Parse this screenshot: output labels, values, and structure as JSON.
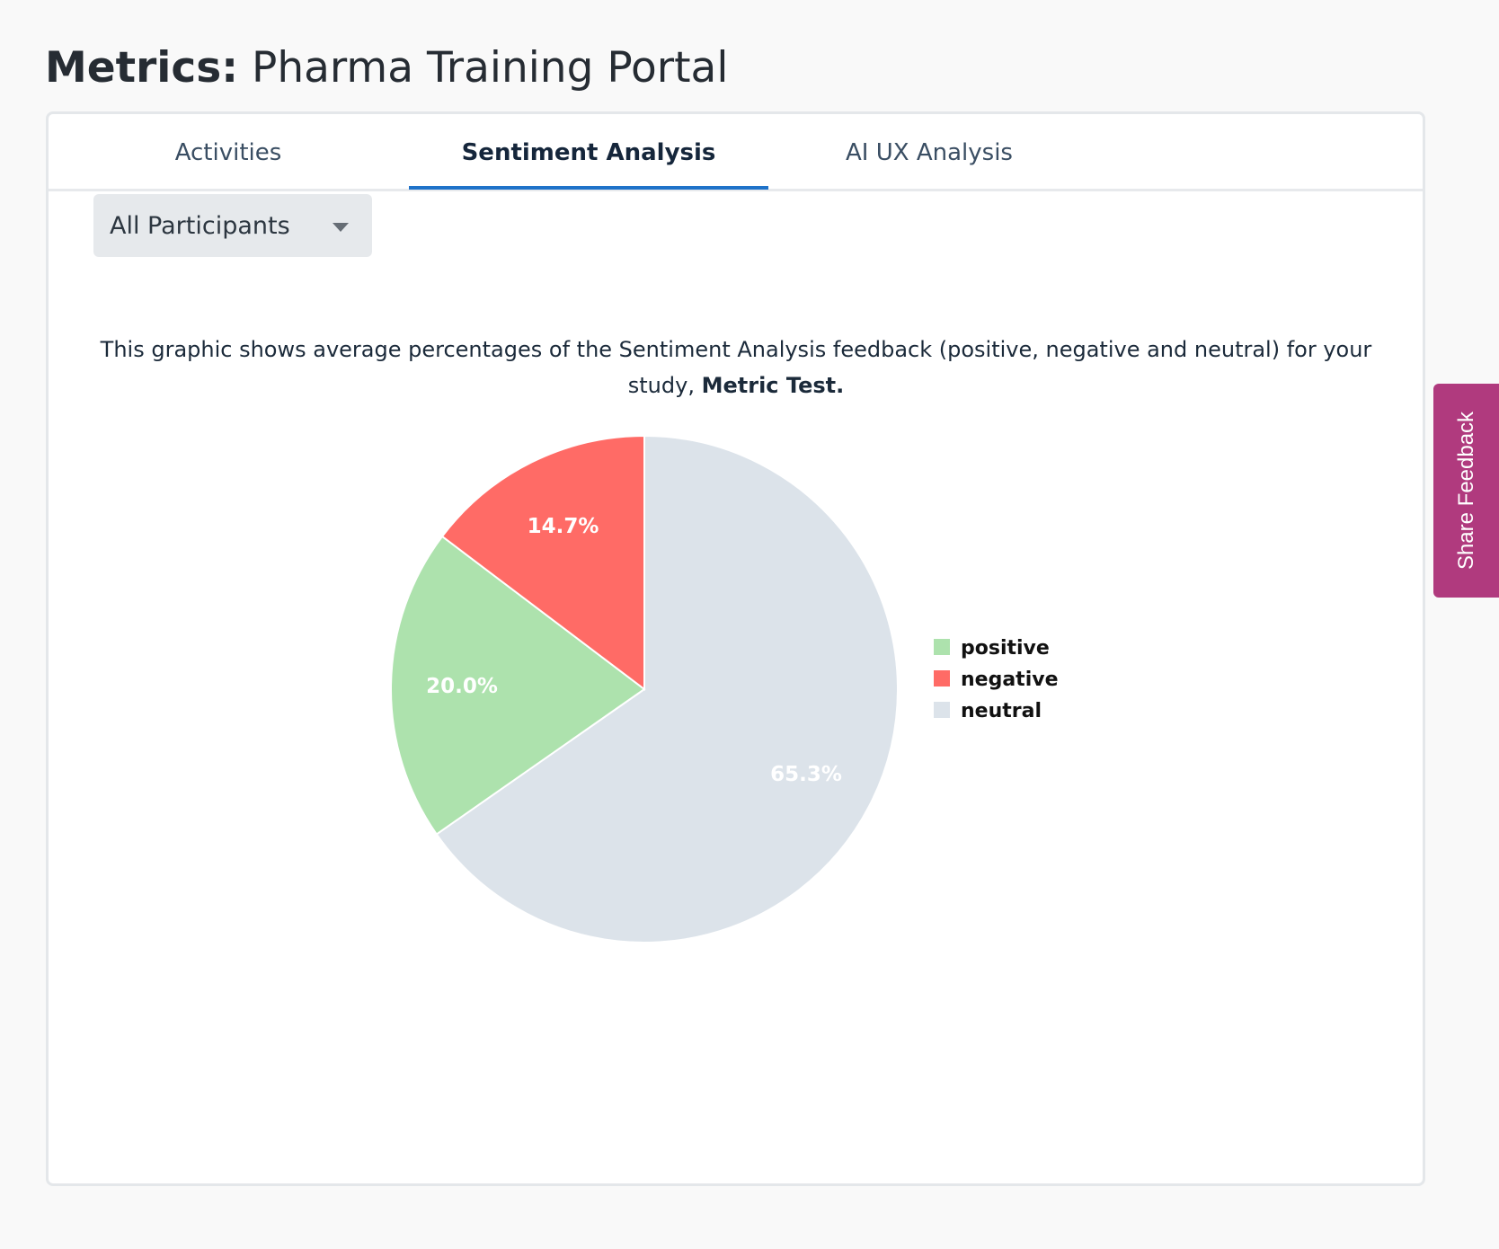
{
  "page": {
    "title_prefix": "Metrics:",
    "title_name": "Pharma Training Portal"
  },
  "tabs": [
    {
      "label": "Activities",
      "active": false
    },
    {
      "label": "Sentiment Analysis",
      "active": true
    },
    {
      "label": "AI UX Analysis",
      "active": false
    }
  ],
  "filter": {
    "selected": "All Participants"
  },
  "description": {
    "text": "This graphic shows average percentages of the Sentiment Analysis feedback (positive, negative and neutral) for your study,",
    "study_name": "Metric Test."
  },
  "chart_data": {
    "type": "pie",
    "slices": [
      {
        "label": "neutral",
        "value": 65.3,
        "display": "65.3%",
        "color": "#dce3ea"
      },
      {
        "label": "positive",
        "value": 20.0,
        "display": "20.0%",
        "color": "#ade2ad"
      },
      {
        "label": "negative",
        "value": 14.7,
        "display": "14.7%",
        "color": "#ff6b66"
      }
    ],
    "legend": [
      "positive",
      "negative",
      "neutral"
    ],
    "legend_placement": "right"
  },
  "feedback": {
    "label": "Share Feedback",
    "color": "#b03a7e"
  }
}
